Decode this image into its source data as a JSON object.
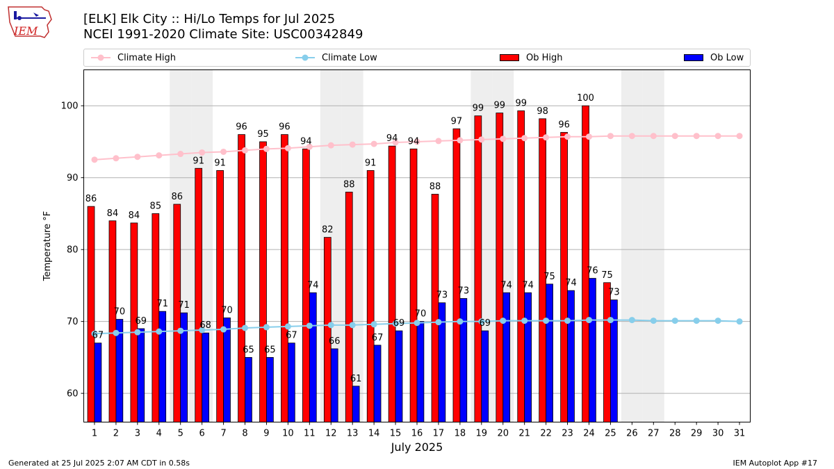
{
  "logo": {
    "text": "IEM",
    "icon": "iem-iowa-map-logo"
  },
  "header": {
    "title_line1": "[ELK] Elk City :: Hi/Lo Temps for Jul 2025",
    "title_line2": "NCEI 1991-2020 Climate Site: USC00342849"
  },
  "legend": {
    "climate_high": "Climate High",
    "climate_low": "Climate Low",
    "ob_high": "Ob High",
    "ob_low": "Ob Low"
  },
  "colors": {
    "ob_high": "#ff0000",
    "ob_low": "#0000ff",
    "climate_high": "#ffc0cb",
    "climate_low": "#87ceeb",
    "weekend_shade": "#eeeeee",
    "grid": "#b0b0b0"
  },
  "chart_data": {
    "type": "bar",
    "xlabel": "July 2025",
    "ylabel": "Temperature °F",
    "ylim": [
      56,
      105
    ],
    "yticks": [
      60,
      70,
      80,
      90,
      100
    ],
    "grid": "horizontal",
    "legend_position": "top",
    "categories": [
      "1",
      "2",
      "3",
      "4",
      "5",
      "6",
      "7",
      "8",
      "9",
      "10",
      "11",
      "12",
      "13",
      "14",
      "15",
      "16",
      "17",
      "18",
      "19",
      "20",
      "21",
      "22",
      "23",
      "24",
      "25",
      "26",
      "27",
      "28",
      "29",
      "30",
      "31"
    ],
    "weekend_days": [
      5,
      6,
      12,
      13,
      19,
      20,
      26,
      27
    ],
    "series": [
      {
        "name": "Ob High",
        "kind": "bar",
        "values": [
          86,
          84,
          83.7,
          85,
          86.3,
          91.3,
          91,
          96,
          95,
          96,
          94,
          81.7,
          88,
          91,
          94.4,
          94,
          87.7,
          96.8,
          98.6,
          99,
          99.3,
          98.2,
          96.3,
          100,
          75.4,
          null,
          null,
          null,
          null,
          null,
          null
        ],
        "labels": [
          86,
          84,
          84,
          85,
          86,
          91,
          91,
          96,
          95,
          96,
          94,
          82,
          88,
          91,
          94,
          94,
          88,
          97,
          99,
          99,
          99,
          98,
          96,
          100,
          75,
          null,
          null,
          null,
          null,
          null,
          null
        ]
      },
      {
        "name": "Ob Low",
        "kind": "bar",
        "values": [
          67,
          70.3,
          69,
          71.4,
          71.2,
          68.4,
          70.5,
          65,
          65,
          67,
          74,
          66.2,
          61,
          66.7,
          68.7,
          70,
          72.6,
          73.2,
          68.7,
          74,
          74,
          75.2,
          74.3,
          76,
          73,
          null,
          null,
          null,
          null,
          null,
          null
        ],
        "labels": [
          67,
          70,
          69,
          71,
          71,
          68,
          70,
          65,
          65,
          67,
          74,
          66,
          61,
          67,
          69,
          70,
          73,
          73,
          69,
          74,
          74,
          75,
          74,
          76,
          73,
          null,
          null,
          null,
          null,
          null,
          null
        ]
      },
      {
        "name": "Climate High",
        "kind": "line",
        "values": [
          92.5,
          92.7,
          92.9,
          93.1,
          93.3,
          93.5,
          93.6,
          93.8,
          94.0,
          94.1,
          94.3,
          94.5,
          94.6,
          94.7,
          94.9,
          95.0,
          95.1,
          95.2,
          95.3,
          95.4,
          95.5,
          95.6,
          95.7,
          95.7,
          95.8,
          95.8,
          95.8,
          95.8,
          95.8,
          95.8,
          95.8
        ]
      },
      {
        "name": "Climate Low",
        "kind": "line",
        "values": [
          68.3,
          68.4,
          68.5,
          68.6,
          68.7,
          68.8,
          68.9,
          69.1,
          69.2,
          69.3,
          69.4,
          69.5,
          69.5,
          69.6,
          69.7,
          69.8,
          69.9,
          70.0,
          70.0,
          70.1,
          70.1,
          70.1,
          70.1,
          70.2,
          70.2,
          70.2,
          70.1,
          70.1,
          70.1,
          70.1,
          70.0
        ]
      }
    ]
  },
  "footer": {
    "left": "Generated at 25 Jul 2025 2:07 AM CDT in 0.58s",
    "right": "IEM Autoplot App #17"
  }
}
